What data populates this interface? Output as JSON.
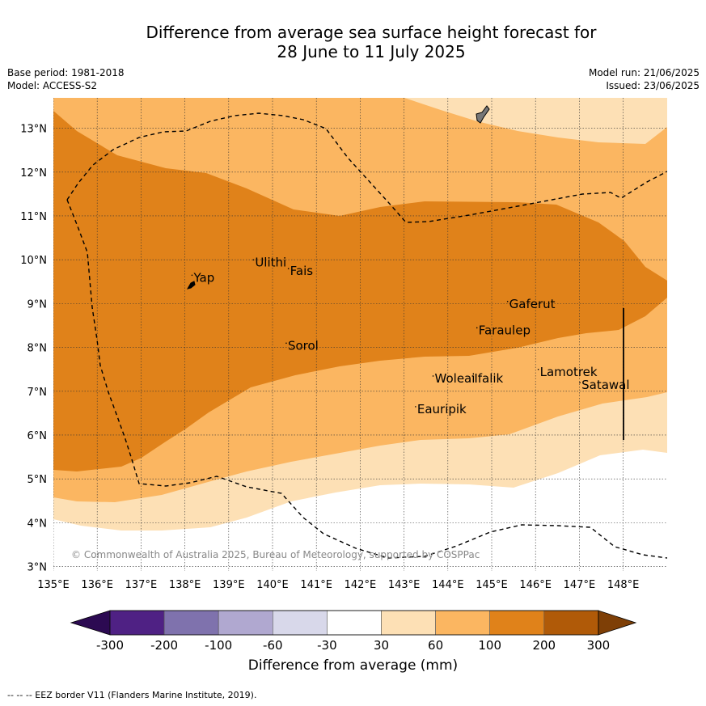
{
  "title_line1": "Difference from average sea surface height forecast for",
  "title_line2": "28 June to 11 July 2025",
  "meta": {
    "base_period": "Base period: 1981-2018",
    "model": "Model: ACCESS-S2",
    "model_run": "Model run: 21/06/2025",
    "issued": "Issued: 23/06/2025"
  },
  "map": {
    "lon_labels": [
      "135°E",
      "136°E",
      "137°E",
      "138°E",
      "139°E",
      "140°E",
      "141°E",
      "142°E",
      "143°E",
      "144°E",
      "145°E",
      "146°E",
      "147°E",
      "148°E"
    ],
    "lat_labels": [
      "3°N",
      "4°N",
      "5°N",
      "6°N",
      "7°N",
      "8°N",
      "9°N",
      "10°N",
      "11°N",
      "12°N",
      "13°N"
    ],
    "lon_range": [
      135,
      149
    ],
    "lat_range": [
      2.9,
      13.8
    ],
    "places": [
      {
        "name": "Yap",
        "lon": 138.2,
        "lat": 9.5
      },
      {
        "name": "Ulithi",
        "lon": 139.6,
        "lat": 9.85
      },
      {
        "name": "Fais",
        "lon": 140.4,
        "lat": 9.65
      },
      {
        "name": "Gaferut",
        "lon": 145.4,
        "lat": 8.9
      },
      {
        "name": "Faraulep",
        "lon": 144.7,
        "lat": 8.3
      },
      {
        "name": "Sorol",
        "lon": 140.35,
        "lat": 7.95
      },
      {
        "name": "Lamotrek",
        "lon": 146.1,
        "lat": 7.35
      },
      {
        "name": "Woleai",
        "lon": 143.7,
        "lat": 7.2
      },
      {
        "name": "Ifalik",
        "lon": 144.6,
        "lat": 7.2
      },
      {
        "name": "Satawal",
        "lon": 147.05,
        "lat": 7.05
      },
      {
        "name": "Eauripik",
        "lon": 143.3,
        "lat": 6.5
      }
    ],
    "copyright": "© Commonwealth of Australia 2025, Bureau of Meteorology, supported by COSPPac"
  },
  "colorbar": {
    "label": "Difference from average (mm)",
    "ticks": [
      "-300",
      "-200",
      "-100",
      "-60",
      "-30",
      "30",
      "60",
      "100",
      "200",
      "300"
    ],
    "colors": [
      "#4f2184",
      "#7f72ad",
      "#b0a8d0",
      "#d8d8ea",
      "#ffffff",
      "#fde0b5",
      "#fbb661",
      "#e0821a",
      "#b05a08"
    ],
    "under_color": "#2c0a52",
    "over_color": "#7e3f06"
  },
  "footer": "--  --  -- EEZ border V11 (Flanders Marine Institute, 2019)."
}
